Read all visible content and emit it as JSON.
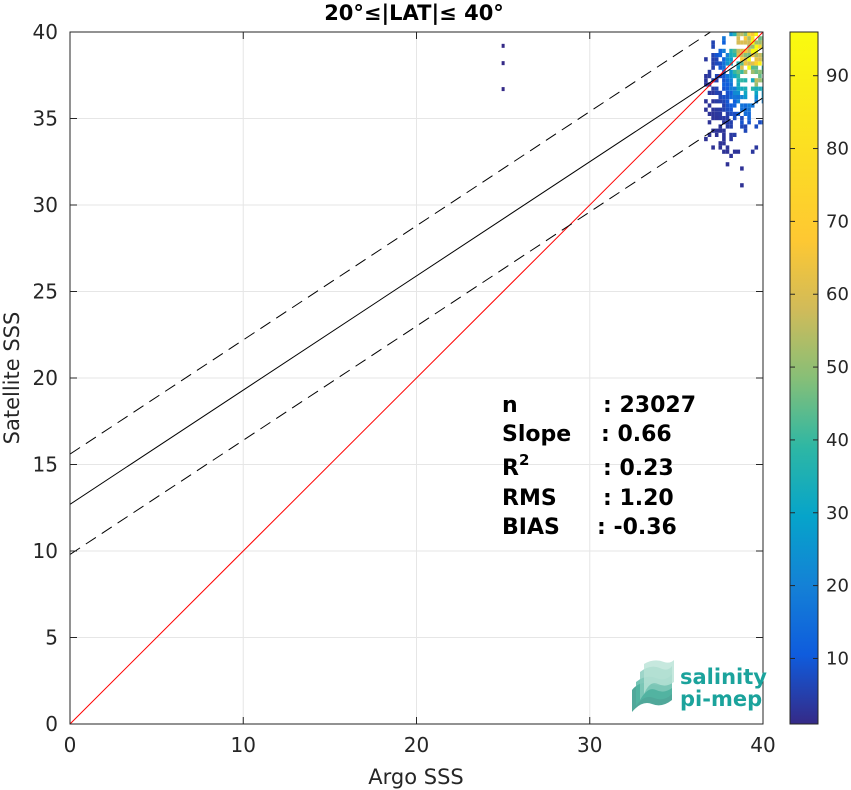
{
  "chart_data": {
    "type": "heatmap",
    "title": "20°≤|LAT|≤ 40°",
    "xlabel": "Argo SSS",
    "ylabel": "Satellite SSS",
    "xlim": [
      0,
      40
    ],
    "ylim": [
      0,
      40
    ],
    "xticks": [
      "0",
      "10",
      "20",
      "30",
      "40"
    ],
    "yticks": [
      "0",
      "5",
      "10",
      "15",
      "20",
      "25",
      "30",
      "35",
      "40"
    ],
    "grid": true,
    "colorbar": {
      "range": [
        1,
        96
      ],
      "ticks": [
        "10",
        "20",
        "30",
        "40",
        "50",
        "60",
        "70",
        "80",
        "90"
      ],
      "colormap": "parula"
    },
    "lines": [
      {
        "name": "1:1 line",
        "style": "solid",
        "color": "#ff0000",
        "points": [
          [
            0,
            0
          ],
          [
            40,
            40
          ]
        ]
      },
      {
        "name": "regression",
        "style": "solid",
        "color": "#000000",
        "points": [
          [
            0,
            12.7
          ],
          [
            40,
            39.1
          ]
        ]
      },
      {
        "name": "upper bound",
        "style": "dashed",
        "color": "#000000",
        "points": [
          [
            0,
            15.6
          ],
          [
            40,
            42.0
          ]
        ]
      },
      {
        "name": "lower bound",
        "style": "dashed",
        "color": "#000000",
        "points": [
          [
            0,
            9.8
          ],
          [
            40,
            36.2
          ]
        ]
      }
    ],
    "density_region": {
      "x_range": [
        36.6,
        40
      ],
      "y_range": [
        26,
        40
      ],
      "peak": [
        39.3,
        39.2
      ]
    },
    "outliers": [
      [
        25.0,
        39.2
      ],
      [
        25.0,
        38.2
      ],
      [
        25.0,
        36.7
      ]
    ]
  },
  "stats": {
    "labels": [
      "n",
      "Slope",
      "R",
      "RMS",
      "BIAS"
    ],
    "r_superscript": "2",
    "values": [
      ": 23027",
      ": 0.66",
      ": 0.23",
      ": 1.20",
      ": -0.36"
    ]
  },
  "logo": {
    "line1": "salinity",
    "line2": "pi-mep"
  },
  "colors": {
    "plot_bg": "#ffffff",
    "grid": "#e6e6e6",
    "identity": "#ff0000",
    "regression": "#000000"
  }
}
